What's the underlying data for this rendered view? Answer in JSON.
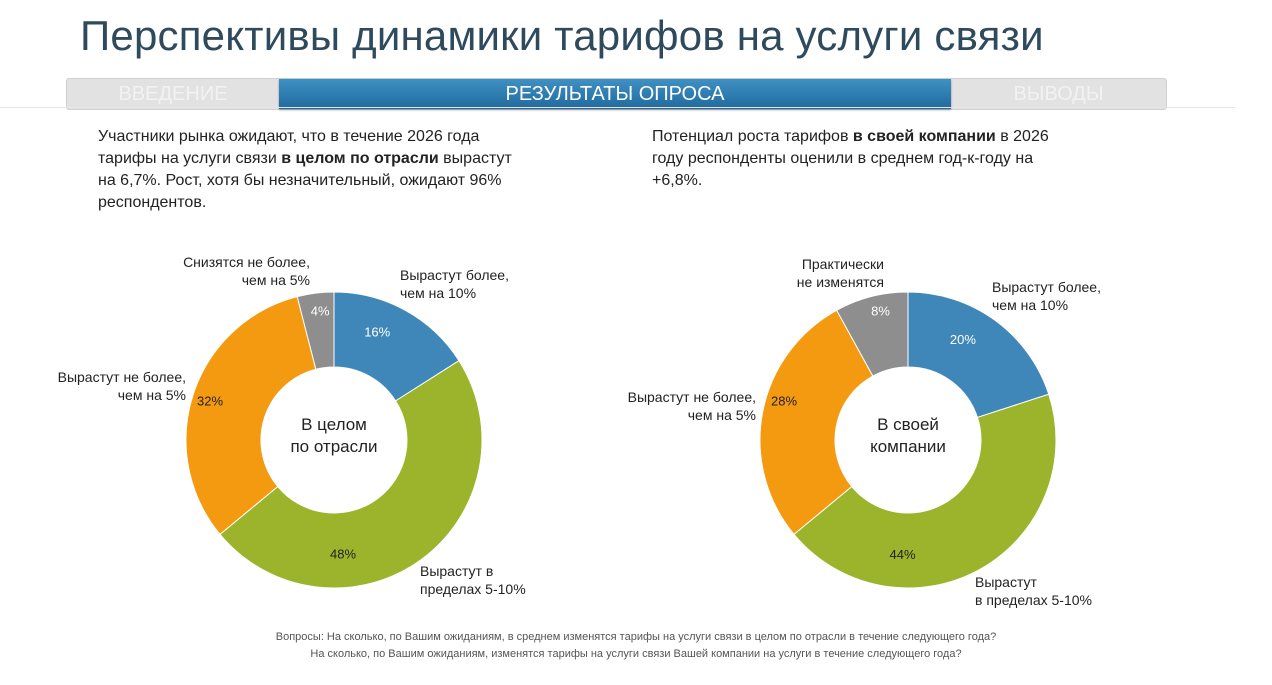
{
  "header": {
    "title": "Перспективы динамики тарифов на услуги связи",
    "tabs": [
      {
        "label": "ВВЕДЕНИЕ",
        "active": false
      },
      {
        "label": "РЕЗУЛЬТАТЫ ОПРОСА",
        "active": true
      },
      {
        "label": "ВЫВОДЫ",
        "active": false
      }
    ]
  },
  "intro_left": {
    "l1": "Участники рынка ожидают, что в течение 2026 года",
    "l2a": "тарифы на услуги связи ",
    "l2b": "в целом по отрасли",
    "l2c": " вырастут",
    "l3": "на 6,7%. Рост, хотя бы незначительный, ожидают 96%",
    "l4": "респондентов."
  },
  "intro_right": {
    "l1a": "Потенциал роста тарифов ",
    "l1b": "в своей компании",
    "l1c": " в 2026",
    "l2": "году респонденты оценили в среднем год-к-году на",
    "l3": "+6,8%."
  },
  "colors": {
    "blue": "#3f87b9",
    "green": "#9bb42c",
    "orange": "#f49a10",
    "gray": "#8e8e8e"
  },
  "chart_data": [
    {
      "type": "pie",
      "center_label": [
        "В целом",
        "по отрасли"
      ],
      "slices": [
        {
          "label": [
            "Вырастут более,",
            "чем на 10%"
          ],
          "value": 16,
          "value_label": "16%",
          "color": "blue"
        },
        {
          "label": [
            "Вырастут в",
            "пределах 5-10%"
          ],
          "value": 48,
          "value_label": "48%",
          "color": "green"
        },
        {
          "label": [
            "Вырастут не более,",
            "чем на 5%"
          ],
          "value": 32,
          "value_label": "32%",
          "color": "orange"
        },
        {
          "label": [
            "Снизятся не более,",
            "чем на 5%"
          ],
          "value": 4,
          "value_label": "4%",
          "color": "gray"
        }
      ]
    },
    {
      "type": "pie",
      "center_label": [
        "В своей",
        "компании"
      ],
      "slices": [
        {
          "label": [
            "Вырастут более,",
            "чем на 10%"
          ],
          "value": 20,
          "value_label": "20%",
          "color": "blue"
        },
        {
          "label": [
            "Вырастут",
            "в пределах 5-10%"
          ],
          "value": 44,
          "value_label": "44%",
          "color": "green"
        },
        {
          "label": [
            "Вырастут не более,",
            "чем на 5%"
          ],
          "value": 28,
          "value_label": "28%",
          "color": "orange"
        },
        {
          "label": [
            "Практически",
            "не изменятся"
          ],
          "value": 8,
          "value_label": "8%",
          "color": "gray"
        }
      ]
    }
  ],
  "footnote": {
    "line1": "Вопросы: На сколько, по Вашим ожиданиям, в среднем изменятся тарифы на услуги связи в целом по отрасли в течение следующего года?",
    "line2": "На сколько, по Вашим ожиданиям, изменятся тарифы на услуги связи Вашей компании на услуги в течение следующего года?"
  }
}
